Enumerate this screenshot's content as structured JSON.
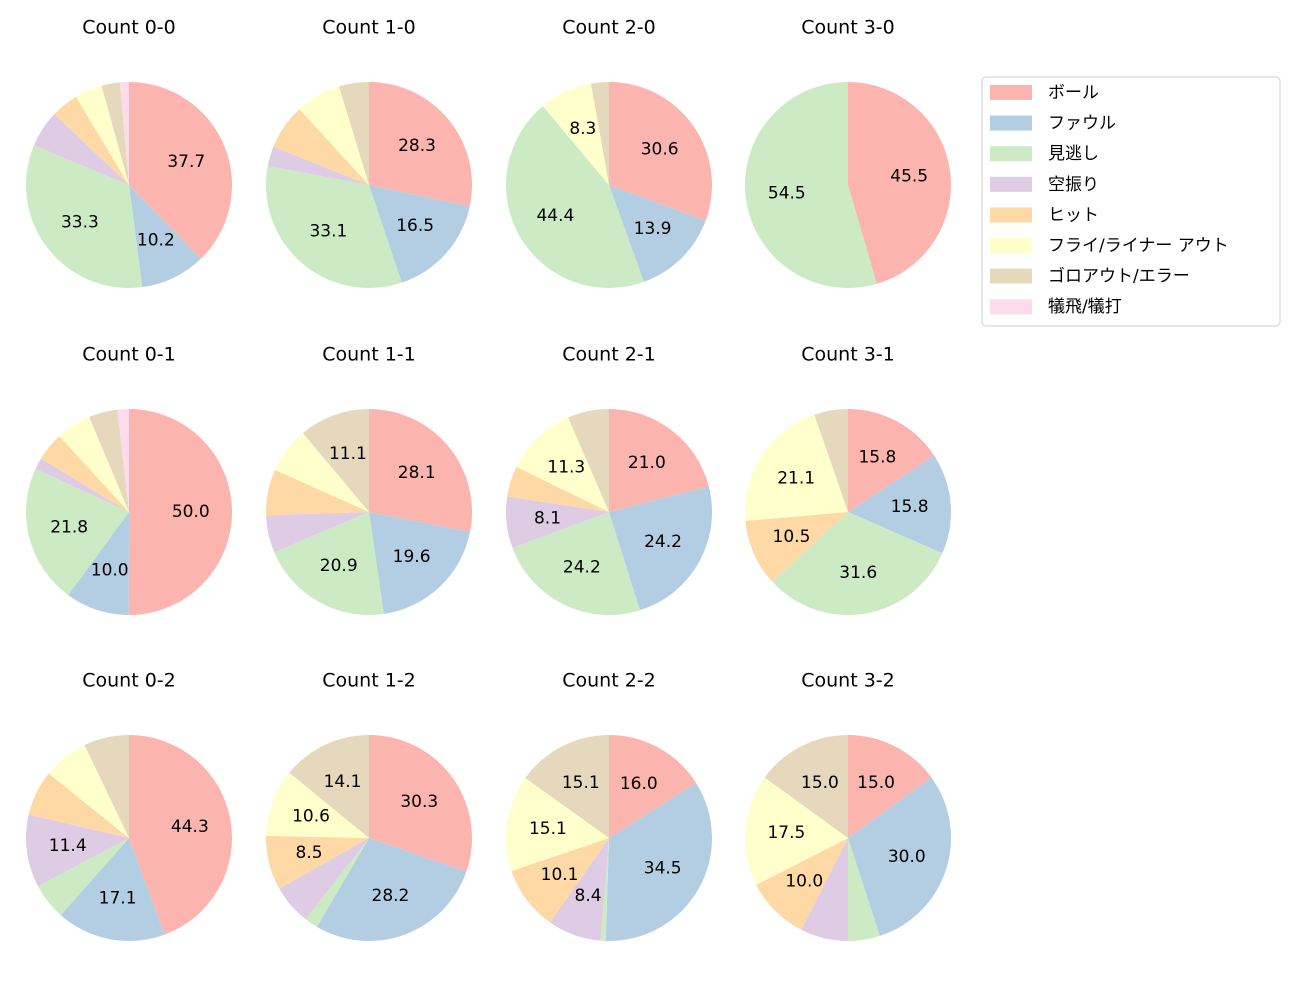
{
  "categories": [
    "ボール",
    "ファウル",
    "見逃し",
    "空振り",
    "ヒット",
    "フライ/ライナー アウト",
    "ゴロアウト/エラー",
    "犠飛/犠打"
  ],
  "colors": [
    "#fbb4ae",
    "#b3cde3",
    "#ccebc5",
    "#decbe4",
    "#fed9a6",
    "#ffffcc",
    "#e5d8bd",
    "#fddaec"
  ],
  "legend_loc": "upper right",
  "chart_data": [
    {
      "type": "pie",
      "title": "Count 0-0",
      "values": [
        37.7,
        10.2,
        33.3,
        5.8,
        4.3,
        4.3,
        2.9,
        1.4
      ],
      "value_labels": [
        "37.7",
        "10.2",
        "33.3",
        null,
        null,
        null,
        null,
        null
      ]
    },
    {
      "type": "pie",
      "title": "Count 1-0",
      "values": [
        28.3,
        16.5,
        33.1,
        3.1,
        7.1,
        7.1,
        4.7,
        0
      ],
      "value_labels": [
        "28.3",
        "16.5",
        "33.1",
        null,
        null,
        null,
        null,
        null
      ]
    },
    {
      "type": "pie",
      "title": "Count 2-0",
      "values": [
        30.6,
        13.9,
        44.4,
        0,
        0,
        8.3,
        2.8,
        0
      ],
      "value_labels": [
        "30.6",
        "13.9",
        "44.4",
        null,
        null,
        "8.3",
        null,
        null
      ]
    },
    {
      "type": "pie",
      "title": "Count 3-0",
      "values": [
        45.5,
        0,
        54.5,
        0,
        0,
        0,
        0,
        0
      ],
      "value_labels": [
        "45.5",
        null,
        "54.5",
        null,
        null,
        null,
        null,
        null
      ]
    },
    {
      "type": "pie",
      "title": "Count 0-1",
      "values": [
        50.0,
        10.0,
        21.8,
        1.8,
        4.5,
        5.5,
        4.5,
        1.8
      ],
      "value_labels": [
        "50.0",
        "10.0",
        "21.8",
        null,
        null,
        null,
        null,
        null
      ]
    },
    {
      "type": "pie",
      "title": "Count 1-1",
      "values": [
        28.1,
        19.6,
        20.9,
        5.9,
        7.2,
        7.2,
        11.1,
        0
      ],
      "value_labels": [
        "28.1",
        "19.6",
        "20.9",
        null,
        null,
        null,
        "11.1",
        null
      ]
    },
    {
      "type": "pie",
      "title": "Count 2-1",
      "values": [
        21.0,
        24.2,
        24.2,
        8.1,
        4.8,
        11.3,
        6.5,
        0
      ],
      "value_labels": [
        "21.0",
        "24.2",
        "24.2",
        "8.1",
        null,
        "11.3",
        null,
        null
      ]
    },
    {
      "type": "pie",
      "title": "Count 3-1",
      "values": [
        15.8,
        15.8,
        31.6,
        0,
        10.5,
        21.1,
        5.3,
        0
      ],
      "value_labels": [
        "15.8",
        "15.8",
        "31.6",
        null,
        "10.5",
        "21.1",
        null,
        null
      ]
    },
    {
      "type": "pie",
      "title": "Count 0-2",
      "values": [
        44.3,
        17.1,
        5.7,
        11.4,
        7.1,
        7.1,
        7.1,
        0
      ],
      "value_labels": [
        "44.3",
        "17.1",
        null,
        "11.4",
        null,
        null,
        null,
        null
      ]
    },
    {
      "type": "pie",
      "title": "Count 1-2",
      "values": [
        30.3,
        28.2,
        2.1,
        6.3,
        8.5,
        10.6,
        14.1,
        0
      ],
      "value_labels": [
        "30.3",
        "28.2",
        null,
        null,
        "8.5",
        "10.6",
        "14.1",
        null
      ]
    },
    {
      "type": "pie",
      "title": "Count 2-2",
      "values": [
        16.0,
        34.5,
        0.8,
        8.4,
        10.1,
        15.1,
        15.1,
        0
      ],
      "value_labels": [
        "16.0",
        "34.5",
        null,
        "8.4",
        "10.1",
        "15.1",
        "15.1",
        null
      ]
    },
    {
      "type": "pie",
      "title": "Count 3-2",
      "values": [
        15.0,
        30.0,
        5.0,
        7.5,
        10.0,
        17.5,
        15.0,
        0
      ],
      "value_labels": [
        "15.0",
        "30.0",
        null,
        null,
        "10.0",
        "17.5",
        "15.0",
        null
      ]
    }
  ]
}
